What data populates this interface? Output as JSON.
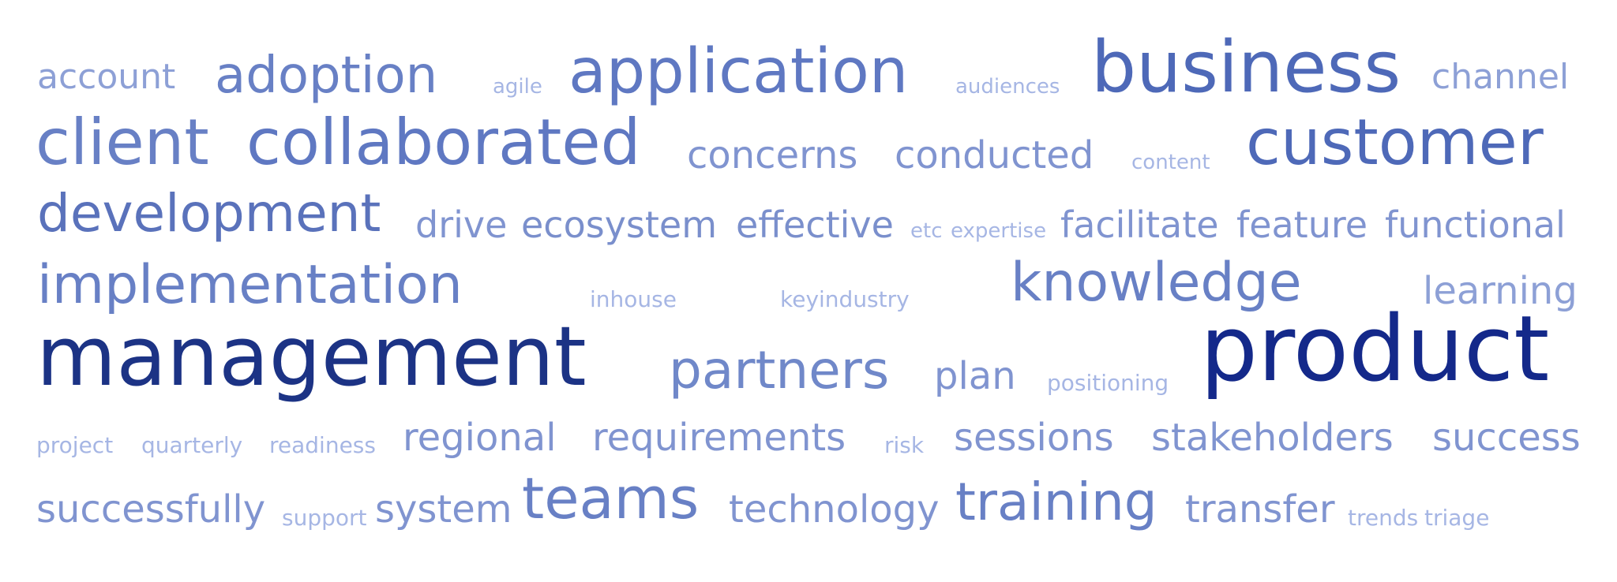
{
  "cloud": {
    "words": [
      {
        "text": "account",
        "color": "#8da0d6"
      },
      {
        "text": "adoption",
        "color": "#6880c5"
      },
      {
        "text": "agile",
        "color": "#a6b6e4"
      },
      {
        "text": "application",
        "color": "#5f78c2"
      },
      {
        "text": "audiences",
        "color": "#a6b6e4"
      },
      {
        "text": "business",
        "color": "#4e69b8"
      },
      {
        "text": "channel",
        "color": "#8da0d6"
      },
      {
        "text": "client",
        "color": "#6880c5"
      },
      {
        "text": "collaborated",
        "color": "#5f78c2"
      },
      {
        "text": "concerns",
        "color": "#8094d0"
      },
      {
        "text": "conducted",
        "color": "#8094d0"
      },
      {
        "text": "content",
        "color": "#a6b6e4"
      },
      {
        "text": "customer",
        "color": "#4e69b8"
      },
      {
        "text": "development",
        "color": "#5a72bb"
      },
      {
        "text": "drive",
        "color": "#8094d0"
      },
      {
        "text": "ecosystem",
        "color": "#7a8fcc"
      },
      {
        "text": "effective",
        "color": "#7a8fcc"
      },
      {
        "text": "etc",
        "color": "#a6b6e4"
      },
      {
        "text": "expertise",
        "color": "#a6b6e4"
      },
      {
        "text": "facilitate",
        "color": "#8094d0"
      },
      {
        "text": "feature",
        "color": "#8094d0"
      },
      {
        "text": "functional",
        "color": "#8094d0"
      },
      {
        "text": "implementation",
        "color": "#6880c5"
      },
      {
        "text": "inhouse",
        "color": "#a6b6e4"
      },
      {
        "text": "keyindustry",
        "color": "#a6b6e4"
      },
      {
        "text": "knowledge",
        "color": "#6880c5"
      },
      {
        "text": "learning",
        "color": "#8da0d6"
      },
      {
        "text": "management",
        "color": "#1c3385"
      },
      {
        "text": "partners",
        "color": "#7088c9"
      },
      {
        "text": "plan",
        "color": "#8094d0"
      },
      {
        "text": "positioning",
        "color": "#a6b6e4"
      },
      {
        "text": "product",
        "color": "#14298a"
      },
      {
        "text": "project",
        "color": "#a6b6e4"
      },
      {
        "text": "quarterly",
        "color": "#a6b6e4"
      },
      {
        "text": "readiness",
        "color": "#a6b6e4"
      },
      {
        "text": "regional",
        "color": "#8094d0"
      },
      {
        "text": "requirements",
        "color": "#8094d0"
      },
      {
        "text": "risk",
        "color": "#a6b6e4"
      },
      {
        "text": "sessions",
        "color": "#8094d0"
      },
      {
        "text": "stakeholders",
        "color": "#8094d0"
      },
      {
        "text": "success",
        "color": "#8094d0"
      },
      {
        "text": "successfully",
        "color": "#8094d0"
      },
      {
        "text": "support",
        "color": "#a6b6e4"
      },
      {
        "text": "system",
        "color": "#8094d0"
      },
      {
        "text": "teams",
        "color": "#6880c5"
      },
      {
        "text": "technology",
        "color": "#8094d0"
      },
      {
        "text": "training",
        "color": "#6880c5"
      },
      {
        "text": "transfer",
        "color": "#8094d0"
      },
      {
        "text": "trends",
        "color": "#a6b6e4"
      },
      {
        "text": "triage",
        "color": "#a6b6e4"
      }
    ]
  }
}
